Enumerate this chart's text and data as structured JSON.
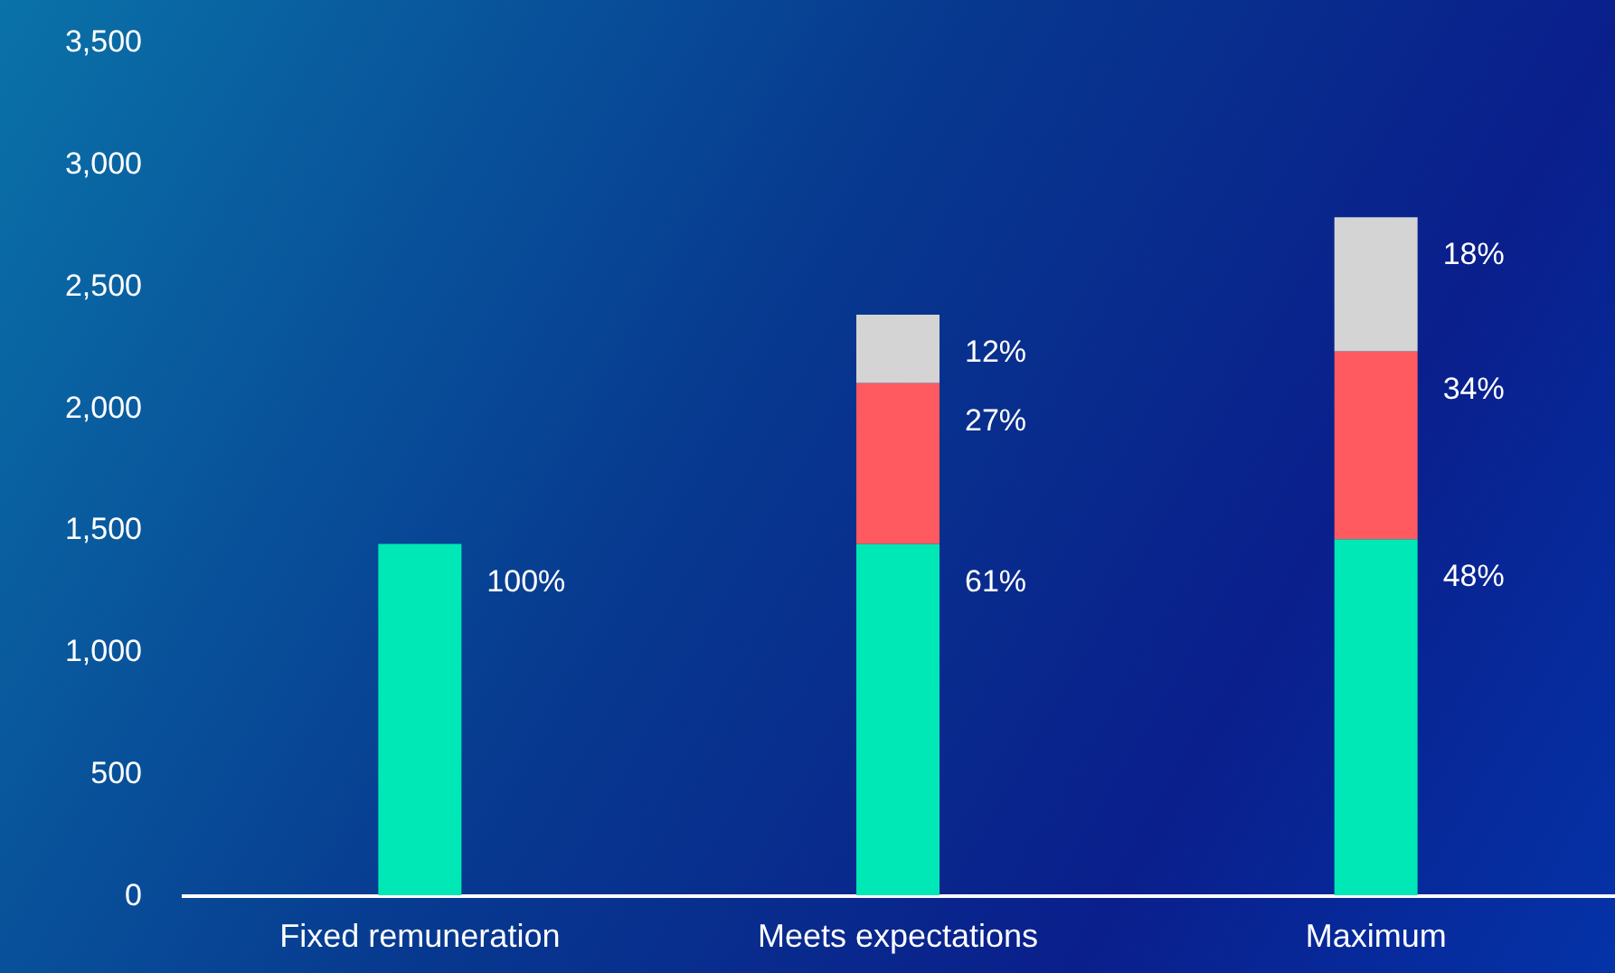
{
  "chart_data": {
    "type": "bar",
    "stacked": true,
    "categories": [
      "Fixed remuneration",
      "Meets expectations",
      "Maximum"
    ],
    "series": [
      {
        "color": "#00e8b6",
        "values": [
          1440,
          1440,
          1460
        ]
      },
      {
        "color": "#ff5a5f",
        "values": [
          null,
          660,
          770
        ]
      },
      {
        "color": "#d4d4d4",
        "values": [
          null,
          280,
          550
        ]
      }
    ],
    "annotations": [
      {
        "text": "100%",
        "x": "Fixed remuneration",
        "y": 1440
      },
      {
        "text": "61%",
        "x": "Meets expectations",
        "y": 1440
      },
      {
        "text": "27%",
        "x": "Meets expectations",
        "y": 2100
      },
      {
        "text": "12%",
        "x": "Meets expectations",
        "y": 2380
      },
      {
        "text": "48%",
        "x": "Maximum",
        "y": 1460
      },
      {
        "text": "34%",
        "x": "Maximum",
        "y": 2230
      },
      {
        "text": "18%",
        "x": "Maximum",
        "y": 2780
      }
    ],
    "ylim": [
      0,
      3500
    ],
    "yticks": [
      0,
      {
        "value": 500,
        "label": "500"
      },
      {
        "value": 1000,
        "label": "1,000"
      },
      {
        "value": 1500,
        "label": "1,500"
      },
      {
        "value": 2000,
        "label": "2,000"
      },
      {
        "value": 2500,
        "label": "2,500"
      },
      {
        "value": 3000,
        "label": "3,000"
      },
      {
        "value": 3500,
        "label": "3,500"
      }
    ],
    "grid": false
  }
}
